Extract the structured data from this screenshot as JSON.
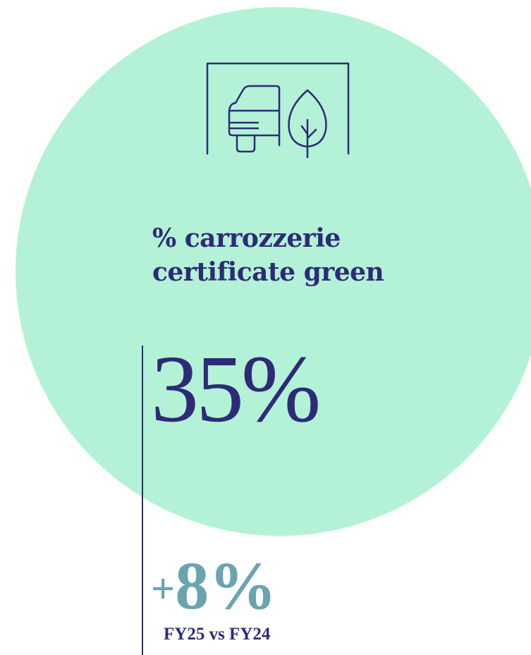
{
  "kpi": {
    "icon": "car-leaf-icon",
    "title_line1": "% carrozzerie",
    "title_line2": "certificate green",
    "value": "35%",
    "delta_sign": "+",
    "delta_value": "8%",
    "comparison": "FY25 vs FY24"
  },
  "colors": {
    "circle_bg": "#b3f2d6",
    "primary": "#2e2a78",
    "accent": "#6aa5ae"
  }
}
